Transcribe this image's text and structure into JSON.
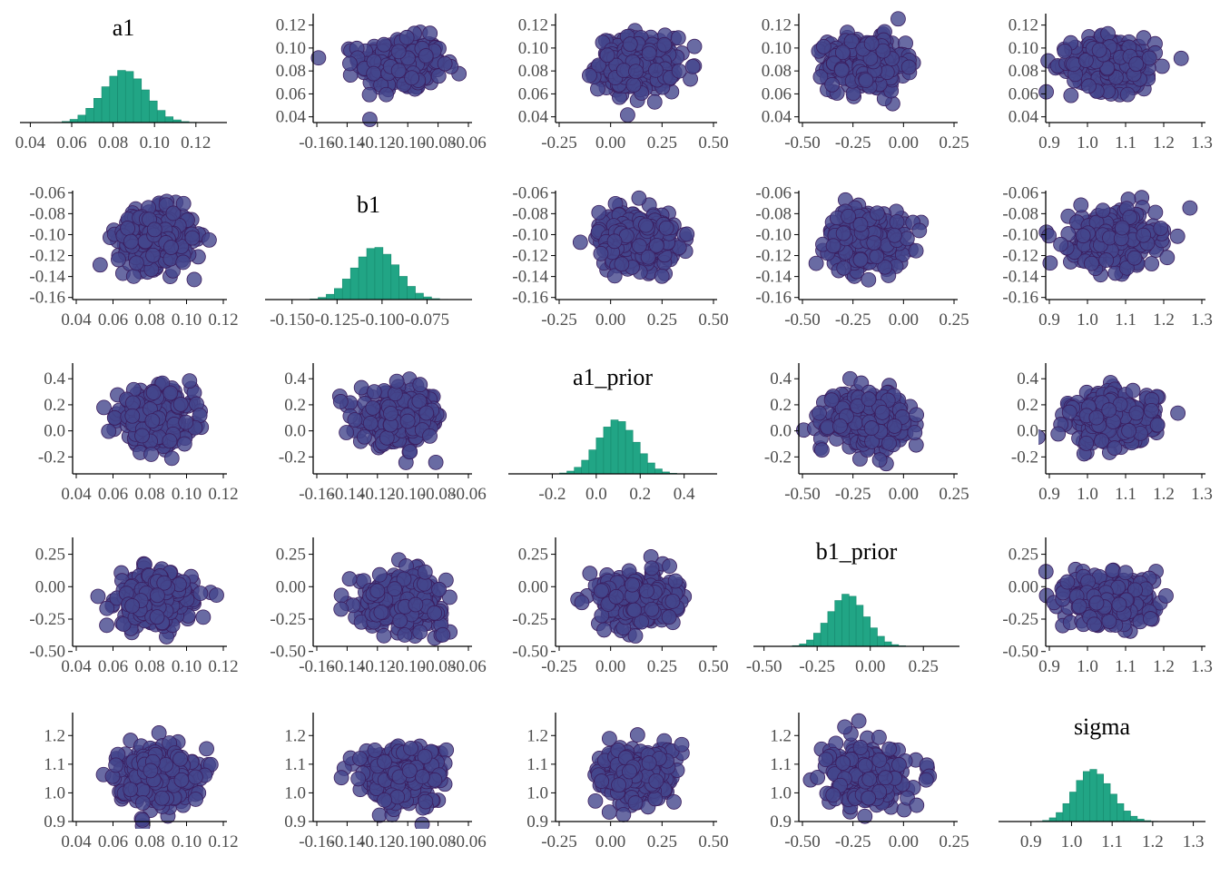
{
  "figure": {
    "type": "pairs-plot",
    "variables": [
      "a1",
      "b1",
      "a1_prior",
      "b1_prior",
      "sigma"
    ],
    "colors": {
      "histogram_fill": "#21a585",
      "histogram_edge": "#178a6e",
      "point_fill": "#44468c",
      "point_edge": "#3b1d5e",
      "axis": "#000000",
      "tick_text": "#4d4d4d"
    }
  },
  "chart_data": {
    "type": "scatter-matrix",
    "variables": [
      {
        "name": "a1",
        "mean": 0.086,
        "sd": 0.0115,
        "scatter_lim": [
          0.035,
          0.13
        ],
        "scatter_ticks": [
          "0.04",
          "0.06",
          "0.08",
          "0.10",
          "0.12"
        ],
        "hist_lim": [
          0.035,
          0.135
        ],
        "hist_ticks": [
          "0.04",
          "0.06",
          "0.08",
          "0.10",
          "0.12"
        ],
        "histogram": [
          0.004,
          0.02,
          0.06,
          0.14,
          0.27,
          0.46,
          0.68,
          0.88,
          0.99,
          0.97,
          0.83,
          0.62,
          0.41,
          0.23,
          0.11,
          0.05,
          0.018,
          0.005
        ]
      },
      {
        "name": "b1",
        "mean": -0.104,
        "sd": 0.0135,
        "scatter_lim": [
          -0.162,
          -0.058
        ],
        "scatter_ticks": [
          "-0.16",
          "-0.14",
          "-0.12",
          "-0.10",
          "-0.08",
          "-0.06"
        ],
        "hist_lim": [
          -0.165,
          -0.05
        ],
        "hist_ticks": [
          "-0.150",
          "-0.125",
          "-0.100",
          "-0.075"
        ],
        "histogram": [
          0.003,
          0.012,
          0.04,
          0.1,
          0.21,
          0.39,
          0.6,
          0.81,
          0.97,
          0.99,
          0.86,
          0.66,
          0.44,
          0.25,
          0.12,
          0.05,
          0.017,
          0.004
        ]
      },
      {
        "name": "a1_prior",
        "mean": 0.1,
        "sd": 0.1,
        "scatter_lim": [
          -0.33,
          0.52
        ],
        "scatter_ticks": [
          "-0.2",
          "0.0",
          "0.2",
          "0.4"
        ],
        "hist_lim": [
          -0.4,
          0.55
        ],
        "hist_ticks": [
          "-0.2",
          "0.0",
          "0.2",
          "0.4"
        ],
        "histogram": [
          0.003,
          0.015,
          0.05,
          0.12,
          0.25,
          0.44,
          0.66,
          0.86,
          0.99,
          0.96,
          0.8,
          0.58,
          0.37,
          0.2,
          0.09,
          0.035,
          0.01,
          0.002
        ]
      },
      {
        "name": "b1_prior",
        "mean": -0.1,
        "sd": 0.1,
        "scatter_lim": [
          -0.46,
          0.38
        ],
        "scatter_ticks": [
          "-0.50",
          "-0.25",
          "0.00",
          "0.25"
        ],
        "hist_lim": [
          -0.55,
          0.42
        ],
        "hist_ticks": [
          "-0.50",
          "-0.25",
          "0.00",
          "0.25"
        ],
        "histogram": [
          0.003,
          0.013,
          0.045,
          0.12,
          0.25,
          0.44,
          0.66,
          0.87,
          0.99,
          0.95,
          0.78,
          0.56,
          0.35,
          0.19,
          0.085,
          0.032,
          0.01,
          0.002
        ]
      },
      {
        "name": "sigma",
        "mean": 1.062,
        "sd": 0.05,
        "scatter_lim": [
          0.9,
          1.28
        ],
        "scatter_ticks": [
          "0.9",
          "1.0",
          "1.1",
          "1.2"
        ],
        "hist_lim": [
          0.82,
          1.33
        ],
        "hist_ticks": [
          "0.9",
          "1.0",
          "1.1",
          "1.2",
          "1.3"
        ],
        "histogram": [
          0.005,
          0.02,
          0.07,
          0.17,
          0.34,
          0.56,
          0.78,
          0.95,
          0.99,
          0.9,
          0.72,
          0.52,
          0.34,
          0.2,
          0.1,
          0.045,
          0.017,
          0.005
        ]
      }
    ],
    "x_axis_tick_labels": {
      "a1": [
        "0.04",
        "0.06",
        "0.08",
        "0.10",
        "0.12"
      ],
      "b1": [
        "-0.16",
        "-0.14",
        "-0.12",
        "-0.10",
        "-0.08",
        "-0.06"
      ],
      "a1_prior": [
        "-0.25",
        "0.00",
        "0.25",
        "0.50"
      ],
      "b1_prior": [
        "-0.50",
        "-0.25",
        "0.00",
        "0.25"
      ],
      "sigma": [
        "0.9",
        "1.0",
        "1.1",
        "1.2",
        "1.3"
      ]
    },
    "grid": false,
    "legend": "none"
  }
}
